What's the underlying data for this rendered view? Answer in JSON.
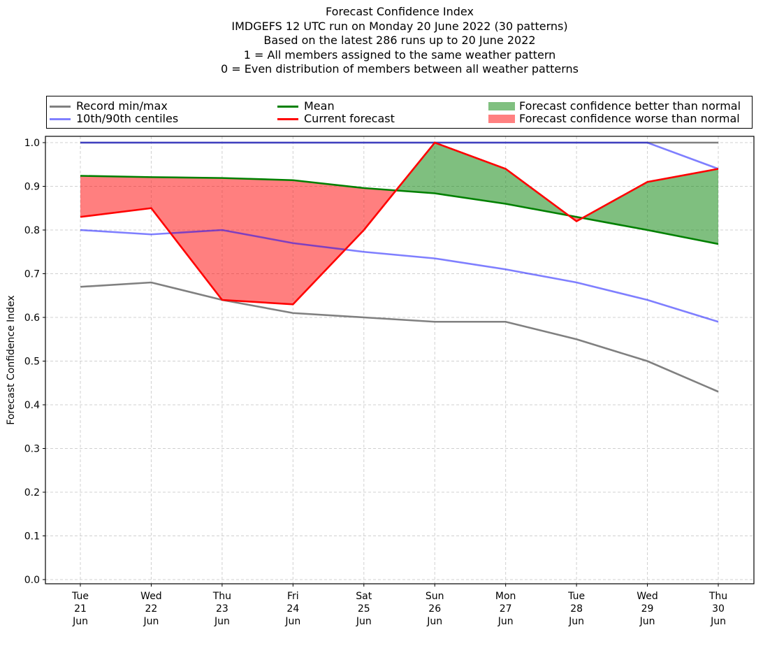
{
  "chart_data": {
    "type": "line",
    "title_lines": [
      "Forecast Confidence Index",
      "IMDGEFS 12 UTC run on Monday 20 June 2022 (30 patterns)",
      "Based on the latest 286 runs up to 20 June 2022",
      "1 = All members assigned to the same weather pattern",
      "0 = Even distribution of members between all weather patterns"
    ],
    "ylabel": "Forecast Confidence Index",
    "xlabel": "",
    "ylim": [
      0.0,
      1.0
    ],
    "yticks": [
      "0.0",
      "0.1",
      "0.2",
      "0.3",
      "0.4",
      "0.5",
      "0.6",
      "0.7",
      "0.8",
      "0.9",
      "1.0"
    ],
    "ytick_values": [
      0.0,
      0.1,
      0.2,
      0.3,
      0.4,
      0.5,
      0.6,
      0.7,
      0.8,
      0.9,
      1.0
    ],
    "categories": [
      [
        "Tue",
        "21",
        "Jun"
      ],
      [
        "Wed",
        "22",
        "Jun"
      ],
      [
        "Thu",
        "23",
        "Jun"
      ],
      [
        "Fri",
        "24",
        "Jun"
      ],
      [
        "Sat",
        "25",
        "Jun"
      ],
      [
        "Sun",
        "26",
        "Jun"
      ],
      [
        "Mon",
        "27",
        "Jun"
      ],
      [
        "Tue",
        "28",
        "Jun"
      ],
      [
        "Wed",
        "29",
        "Jun"
      ],
      [
        "Thu",
        "30",
        "Jun"
      ]
    ],
    "grid": true,
    "legend_placement": "top (above plot)",
    "series": [
      {
        "name": "Record max",
        "legend": "Record min/max",
        "color": "#808080",
        "values": [
          1.0,
          1.0,
          1.0,
          1.0,
          1.0,
          1.0,
          1.0,
          1.0,
          1.0,
          1.0
        ]
      },
      {
        "name": "Record min",
        "legend": "Record min/max",
        "color": "#808080",
        "values": [
          0.67,
          0.68,
          0.64,
          0.61,
          0.6,
          0.59,
          0.59,
          0.55,
          0.5,
          0.43
        ]
      },
      {
        "name": "90th centile",
        "legend": "10th/90th centiles",
        "color": "#0000ff",
        "values": [
          1.0,
          1.0,
          1.0,
          1.0,
          1.0,
          1.0,
          1.0,
          1.0,
          1.0,
          0.94
        ]
      },
      {
        "name": "10th centile",
        "legend": "10th/90th centiles",
        "color": "#0000ff",
        "values": [
          0.8,
          0.79,
          0.8,
          0.77,
          0.75,
          0.735,
          0.71,
          0.68,
          0.64,
          0.59
        ]
      },
      {
        "name": "Mean",
        "legend": "Mean",
        "color": "#008000",
        "values": [
          0.924,
          0.921,
          0.919,
          0.914,
          0.896,
          0.884,
          0.86,
          0.83,
          0.8,
          0.768
        ]
      },
      {
        "name": "Current forecast",
        "legend": "Current forecast",
        "color": "#ff0000",
        "values": [
          0.83,
          0.85,
          0.64,
          0.63,
          0.8,
          1.0,
          0.94,
          0.82,
          0.91,
          0.94
        ]
      }
    ],
    "fills": [
      {
        "name": "Forecast confidence better than normal",
        "color": "#008000",
        "alpha": 0.5,
        "condition": "current forecast above mean"
      },
      {
        "name": "Forecast confidence worse than normal",
        "color": "#ff0000",
        "alpha": 0.5,
        "condition": "current forecast below mean"
      }
    ]
  },
  "legend": {
    "items": [
      {
        "label": "Record min/max",
        "kind": "line",
        "color": "#808080"
      },
      {
        "label": "10th/90th centiles",
        "kind": "line",
        "color": "#8080ff"
      },
      {
        "label": "Mean",
        "kind": "line",
        "color": "#008000"
      },
      {
        "label": "Current forecast",
        "kind": "line",
        "color": "#ff0000"
      },
      {
        "label": "Forecast confidence better than normal",
        "kind": "patch",
        "color": "#80c080"
      },
      {
        "label": "Forecast confidence worse than normal",
        "kind": "patch",
        "color": "#ff8080"
      }
    ]
  }
}
